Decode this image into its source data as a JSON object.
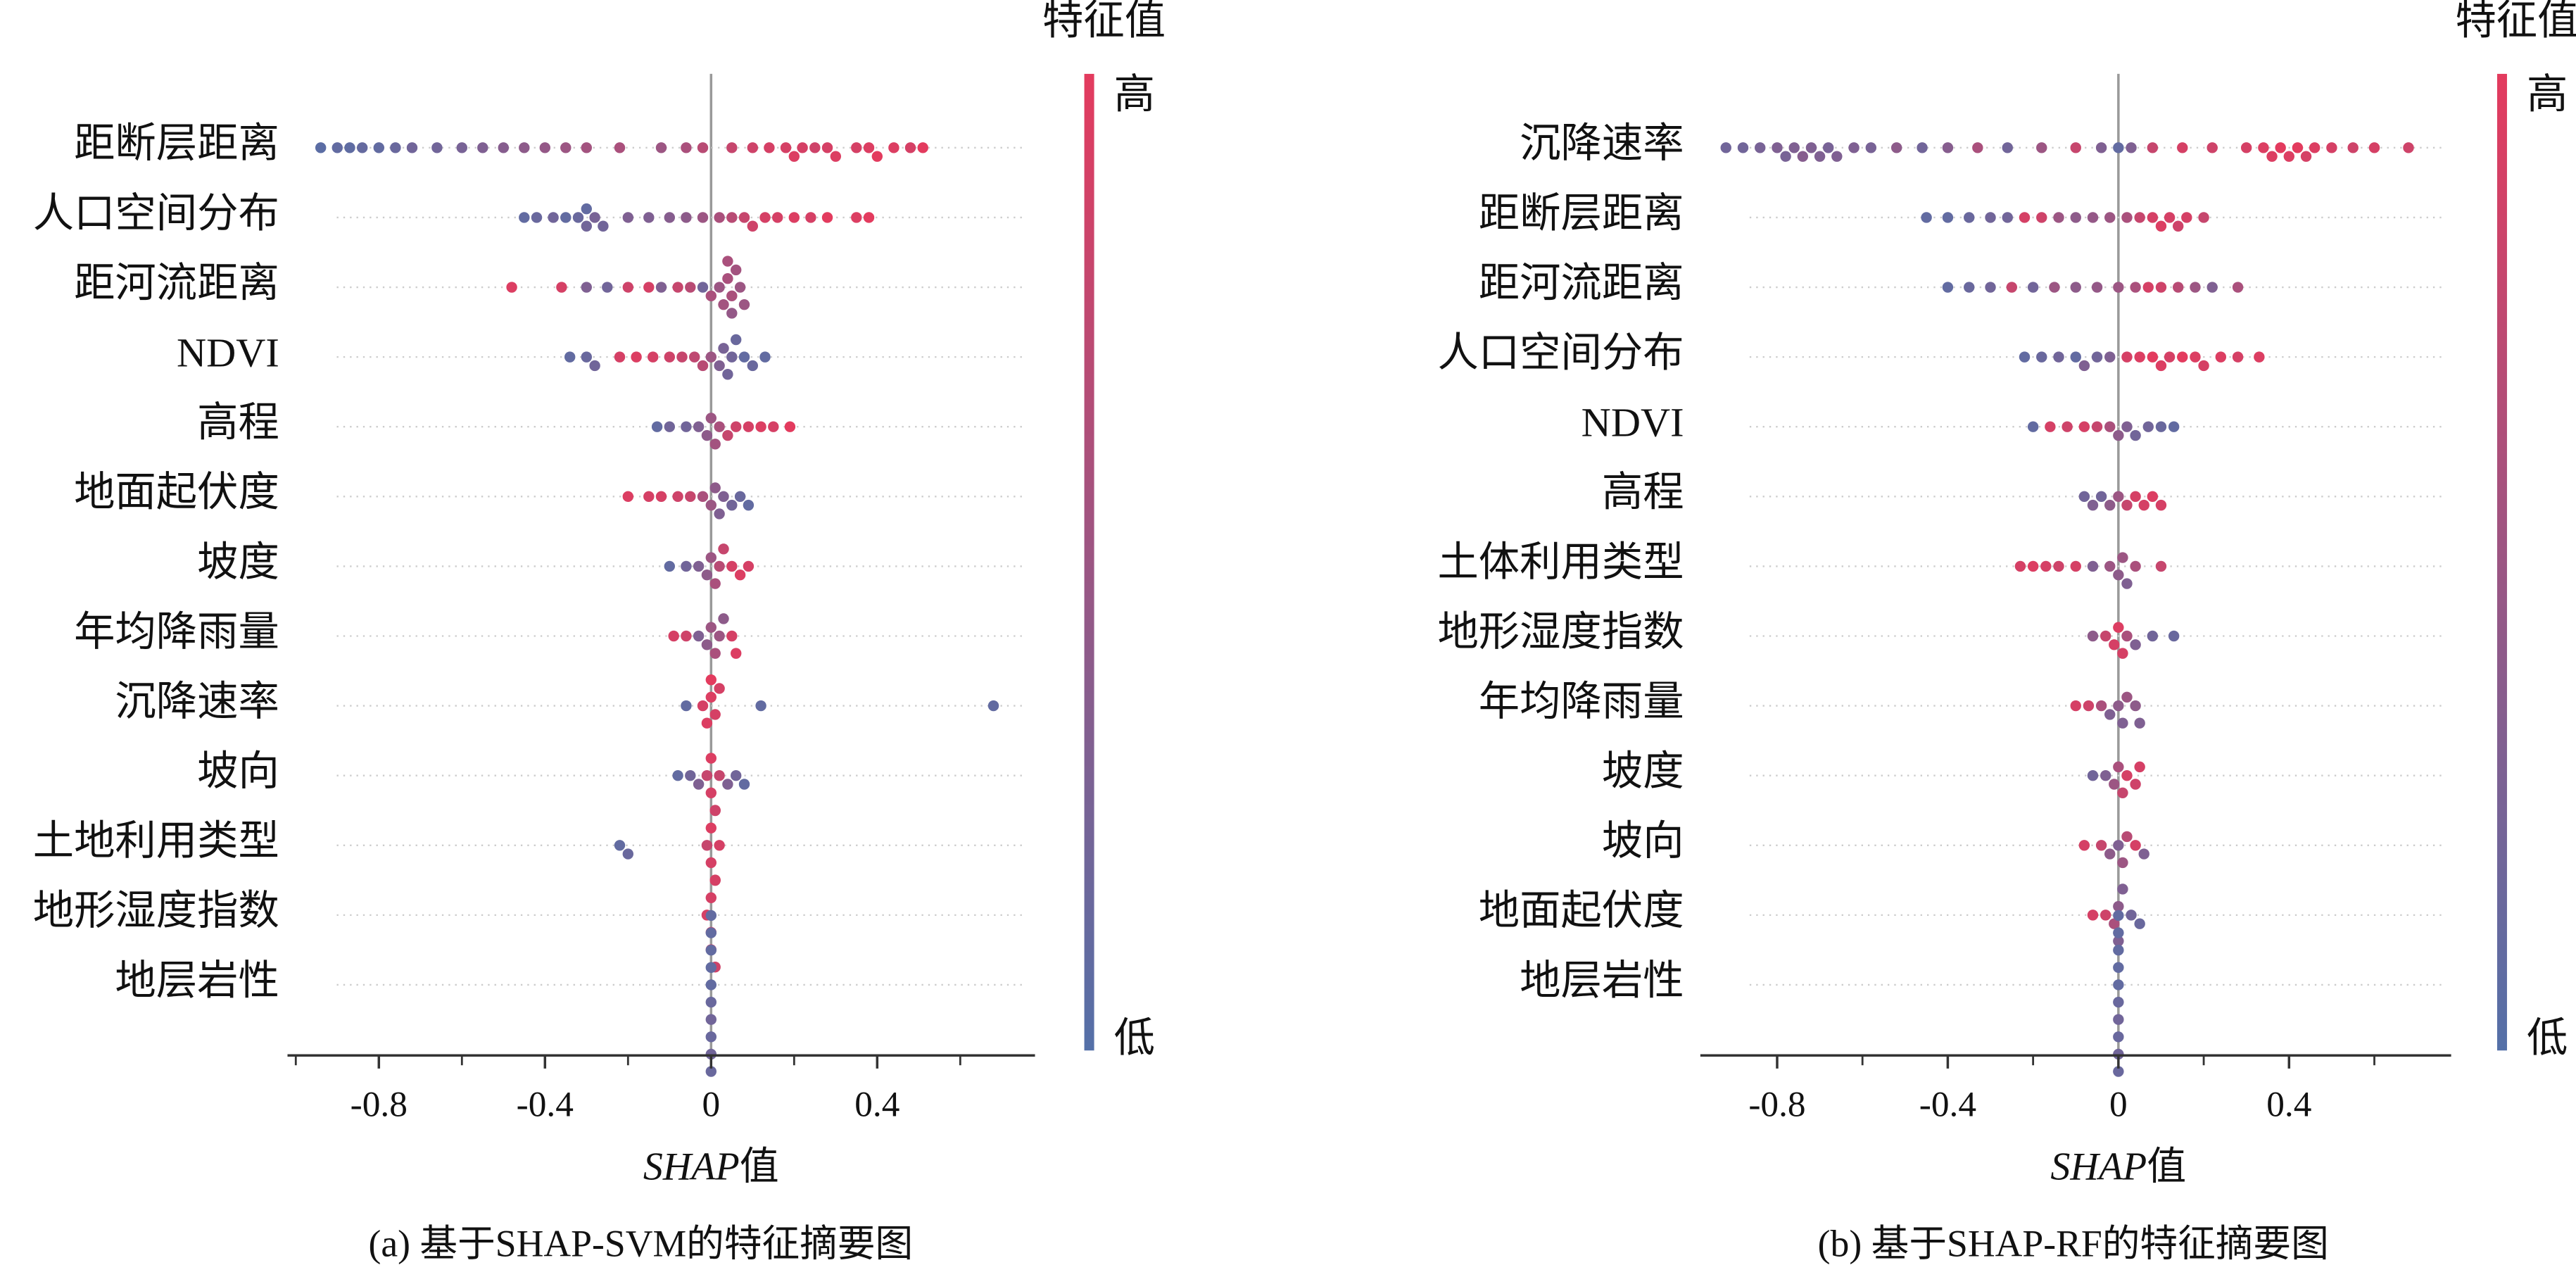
{
  "chart_data": [
    {
      "type": "beeswarm",
      "title": "(a) 基于SHAP-SVM的特征摘要图",
      "xlabel": [
        "SHAP",
        "值"
      ],
      "colorbar_label": "特征值",
      "colorbar_high": "高",
      "colorbar_low": "低",
      "colormap": [
        "#5470a8",
        "#e33b5e"
      ],
      "xlim": [
        -1.02,
        0.78
      ],
      "xticks": [
        -0.8,
        -0.4,
        0,
        0.4
      ],
      "xminorticks": [
        -1.0,
        -0.6,
        -0.2,
        0.2,
        0.6
      ],
      "features": [
        {
          "name": "距断层距离",
          "shap": [
            -0.94,
            -0.9,
            -0.87,
            -0.84,
            -0.8,
            -0.76,
            -0.72,
            -0.66,
            -0.6,
            -0.55,
            -0.5,
            -0.45,
            -0.4,
            -0.35,
            -0.3,
            -0.22,
            -0.12,
            -0.06,
            -0.02,
            0.05,
            0.1,
            0.14,
            0.18,
            0.2,
            0.22,
            0.25,
            0.28,
            0.3,
            0.35,
            0.38,
            0.4,
            0.44,
            0.48,
            0.51
          ],
          "feature_values": [
            0.05,
            0.1,
            0.08,
            0.12,
            0.1,
            0.15,
            0.2,
            0.2,
            0.25,
            0.3,
            0.35,
            0.4,
            0.45,
            0.5,
            0.55,
            0.6,
            0.5,
            0.6,
            0.7,
            0.8,
            0.85,
            0.9,
            0.9,
            0.95,
            0.9,
            0.85,
            0.9,
            0.95,
            0.9,
            0.95,
            1,
            0.95,
            0.9,
            1
          ]
        },
        {
          "name": "人口空间分布",
          "shap": [
            -0.45,
            -0.42,
            -0.38,
            -0.35,
            -0.32,
            -0.3,
            -0.3,
            -0.28,
            -0.26,
            -0.2,
            -0.15,
            -0.1,
            -0.06,
            -0.02,
            0.02,
            0.05,
            0.08,
            0.1,
            0.13,
            0.16,
            0.2,
            0.24,
            0.28,
            0.35,
            0.38
          ],
          "feature_values": [
            0.1,
            0.15,
            0.2,
            0.1,
            0.15,
            0.2,
            0.1,
            0.25,
            0.2,
            0.3,
            0.3,
            0.35,
            0.4,
            0.5,
            0.6,
            0.7,
            0.8,
            0.85,
            0.9,
            0.9,
            0.95,
            0.9,
            1,
            0.95,
            1
          ]
        },
        {
          "name": "距河流距离",
          "shap": [
            -0.48,
            -0.36,
            -0.3,
            -0.25,
            -0.2,
            -0.15,
            -0.12,
            -0.08,
            -0.05,
            -0.02,
            0,
            0.02,
            0.03,
            0.04,
            0.05,
            0.06,
            0.07,
            0.08,
            0.05,
            0.04
          ],
          "feature_values": [
            0.95,
            0.9,
            0.3,
            0.2,
            0.85,
            0.9,
            0.3,
            0.8,
            0.7,
            0.2,
            0.6,
            0.5,
            0.55,
            0.6,
            0.6,
            0.55,
            0.5,
            0.5,
            0.45,
            0.6
          ]
        },
        {
          "name": "NDVI",
          "shap": [
            -0.34,
            -0.3,
            -0.28,
            -0.22,
            -0.18,
            -0.14,
            -0.1,
            -0.07,
            -0.04,
            -0.02,
            0,
            0.02,
            0.03,
            0.04,
            0.05,
            0.06,
            0.08,
            0.1,
            0.13
          ],
          "feature_values": [
            0.1,
            0.15,
            0.2,
            0.9,
            0.95,
            0.9,
            0.85,
            0.8,
            0.75,
            0.7,
            0.5,
            0.3,
            0.25,
            0.2,
            0.2,
            0.15,
            0.1,
            0.15,
            0.1
          ]
        },
        {
          "name": "高程",
          "shap": [
            -0.13,
            -0.1,
            -0.06,
            -0.03,
            -0.01,
            0,
            0.01,
            0.02,
            0.04,
            0.06,
            0.09,
            0.12,
            0.15,
            0.19
          ],
          "feature_values": [
            0.1,
            0.2,
            0.2,
            0.3,
            0.4,
            0.5,
            0.55,
            0.6,
            0.8,
            0.85,
            0.9,
            0.95,
            0.9,
            1
          ]
        },
        {
          "name": "地面起伏度",
          "shap": [
            -0.2,
            -0.15,
            -0.12,
            -0.08,
            -0.05,
            -0.02,
            0,
            0.01,
            0.02,
            0.03,
            0.05,
            0.07,
            0.09
          ],
          "feature_values": [
            0.95,
            0.9,
            0.9,
            0.85,
            0.8,
            0.6,
            0.5,
            0.4,
            0.3,
            0.3,
            0.2,
            0.15,
            0.1
          ]
        },
        {
          "name": "坡度",
          "shap": [
            -0.1,
            -0.06,
            -0.03,
            -0.01,
            0,
            0.01,
            0.02,
            0.03,
            0.05,
            0.07,
            0.09
          ],
          "feature_values": [
            0.1,
            0.2,
            0.3,
            0.4,
            0.5,
            0.6,
            0.7,
            0.8,
            0.9,
            0.95,
            0.9
          ]
        },
        {
          "name": "年均降雨量",
          "shap": [
            -0.09,
            -0.06,
            -0.03,
            -0.01,
            0,
            0.01,
            0.02,
            0.03,
            0.05,
            0.06
          ],
          "feature_values": [
            0.9,
            0.85,
            0.3,
            0.4,
            0.5,
            0.6,
            0.5,
            0.4,
            0.9,
            0.95
          ]
        },
        {
          "name": "沉降速率",
          "shap": [
            -0.06,
            -0.02,
            -0.01,
            0,
            0,
            0.01,
            0.02,
            0.12,
            0.68
          ],
          "feature_values": [
            0.1,
            0.9,
            0.95,
            0.95,
            1,
            0.9,
            0.9,
            0.1,
            0.1
          ]
        },
        {
          "name": "坡向",
          "shap": [
            -0.08,
            -0.05,
            -0.03,
            -0.01,
            0,
            0,
            0.01,
            0.02,
            0.04,
            0.06,
            0.08
          ],
          "feature_values": [
            0.1,
            0.2,
            0.3,
            0.8,
            0.9,
            0.95,
            0.9,
            0.8,
            0.3,
            0.2,
            0.1
          ]
        },
        {
          "name": "土地利用类型",
          "shap": [
            -0.22,
            -0.2,
            -0.01,
            0,
            0,
            0.01,
            0.01,
            0.02
          ],
          "feature_values": [
            0.1,
            0.15,
            0.8,
            0.9,
            0.95,
            0.9,
            0.85,
            0.9
          ]
        },
        {
          "name": "地形湿度指数",
          "shap": [
            -0.01,
            0,
            0,
            0,
            0.01,
            0.01
          ],
          "feature_values": [
            0.9,
            0.95,
            0.9,
            0.8,
            0.9,
            0.85
          ]
        },
        {
          "name": "地层岩性",
          "shap": [
            0,
            0,
            0,
            0,
            0,
            0,
            0,
            0,
            0,
            0
          ],
          "feature_values": [
            0.1,
            0.15,
            0.1,
            0.2,
            0.1,
            0.15,
            0.1,
            0.2,
            0.1,
            0.15
          ]
        }
      ]
    },
    {
      "type": "beeswarm",
      "title": "(b) 基于SHAP-RF的特征摘要图",
      "xlabel": [
        "SHAP",
        "值"
      ],
      "colorbar_label": "特征值",
      "colorbar_high": "高",
      "colorbar_low": "低",
      "colormap": [
        "#5470a8",
        "#e33b5e"
      ],
      "xlim": [
        -0.98,
        0.78
      ],
      "xticks": [
        -0.8,
        -0.4,
        0,
        0.4
      ],
      "xminorticks": [
        -0.6,
        -0.2,
        0.2,
        0.6
      ],
      "features": [
        {
          "name": "沉降速率",
          "shap": [
            -0.92,
            -0.88,
            -0.84,
            -0.8,
            -0.78,
            -0.76,
            -0.74,
            -0.72,
            -0.7,
            -0.68,
            -0.66,
            -0.62,
            -0.58,
            -0.52,
            -0.46,
            -0.4,
            -0.33,
            -0.26,
            -0.18,
            -0.1,
            -0.04,
            0,
            0.03,
            0.08,
            0.15,
            0.22,
            0.3,
            0.34,
            0.36,
            0.38,
            0.4,
            0.42,
            0.44,
            0.46,
            0.5,
            0.55,
            0.6,
            0.68
          ],
          "feature_values": [
            0.2,
            0.2,
            0.25,
            0.3,
            0.25,
            0.3,
            0.35,
            0.3,
            0.3,
            0.25,
            0.3,
            0.3,
            0.25,
            0.4,
            0.2,
            0.35,
            0.6,
            0.2,
            0.5,
            0.8,
            0.3,
            0.1,
            0.3,
            0.8,
            0.9,
            0.85,
            0.9,
            0.95,
            0.95,
            1,
            0.95,
            1,
            0.9,
            0.95,
            0.9,
            0.85,
            0.9,
            0.85
          ]
        },
        {
          "name": "距断层距离",
          "shap": [
            -0.45,
            -0.4,
            -0.35,
            -0.3,
            -0.26,
            -0.22,
            -0.18,
            -0.14,
            -0.1,
            -0.06,
            -0.02,
            0.02,
            0.05,
            0.08,
            0.1,
            0.12,
            0.14,
            0.16,
            0.2
          ],
          "feature_values": [
            0.1,
            0.1,
            0.15,
            0.2,
            0.2,
            0.9,
            0.85,
            0.5,
            0.4,
            0.45,
            0.5,
            0.6,
            0.8,
            0.9,
            0.95,
            0.9,
            0.85,
            0.9,
            0.8
          ]
        },
        {
          "name": "距河流距离",
          "shap": [
            -0.4,
            -0.35,
            -0.3,
            -0.25,
            -0.2,
            -0.15,
            -0.1,
            -0.05,
            0,
            0.04,
            0.07,
            0.1,
            0.14,
            0.18,
            0.22,
            0.28
          ],
          "feature_values": [
            0.1,
            0.15,
            0.2,
            0.8,
            0.2,
            0.5,
            0.4,
            0.45,
            0.5,
            0.6,
            0.9,
            0.85,
            0.7,
            0.5,
            0.3,
            0.6
          ]
        },
        {
          "name": "人口空间分布",
          "shap": [
            -0.22,
            -0.18,
            -0.14,
            -0.1,
            -0.08,
            -0.05,
            -0.02,
            0.02,
            0.05,
            0.08,
            0.1,
            0.12,
            0.15,
            0.18,
            0.2,
            0.24,
            0.28,
            0.33
          ],
          "feature_values": [
            0.1,
            0.15,
            0.2,
            0.1,
            0.3,
            0.2,
            0.3,
            0.9,
            0.95,
            1,
            0.95,
            0.9,
            1,
            0.95,
            0.9,
            0.95,
            0.9,
            0.95
          ]
        },
        {
          "name": "NDVI",
          "shap": [
            -0.2,
            -0.16,
            -0.12,
            -0.08,
            -0.05,
            -0.02,
            0,
            0.02,
            0.04,
            0.07,
            0.1,
            0.13
          ],
          "feature_values": [
            0.1,
            0.9,
            0.85,
            0.9,
            0.8,
            0.6,
            0.4,
            0.3,
            0.2,
            0.2,
            0.15,
            0.1
          ]
        },
        {
          "name": "高程",
          "shap": [
            -0.08,
            -0.06,
            -0.04,
            -0.02,
            0,
            0.02,
            0.04,
            0.06,
            0.08,
            0.1
          ],
          "feature_values": [
            0.2,
            0.3,
            0.2,
            0.4,
            0.5,
            0.8,
            0.9,
            0.9,
            0.95,
            0.9
          ]
        },
        {
          "name": "土体利用类型",
          "shap": [
            -0.23,
            -0.2,
            -0.17,
            -0.14,
            -0.1,
            -0.06,
            -0.02,
            0,
            0.01,
            0.02,
            0.04,
            0.1
          ],
          "feature_values": [
            0.9,
            0.95,
            0.9,
            0.85,
            0.9,
            0.3,
            0.5,
            0.4,
            0.5,
            0.3,
            0.6,
            0.8
          ]
        },
        {
          "name": "地形湿度指数",
          "shap": [
            -0.06,
            -0.03,
            -0.01,
            0,
            0.01,
            0.02,
            0.04,
            0.08,
            0.13
          ],
          "feature_values": [
            0.4,
            0.8,
            0.9,
            0.95,
            0.9,
            0.6,
            0.3,
            0.2,
            0.15
          ]
        },
        {
          "name": "年均降雨量",
          "shap": [
            -0.1,
            -0.07,
            -0.04,
            -0.02,
            0,
            0.01,
            0.02,
            0.04,
            0.05
          ],
          "feature_values": [
            0.9,
            0.85,
            0.6,
            0.3,
            0.4,
            0.3,
            0.5,
            0.4,
            0.3
          ]
        },
        {
          "name": "坡度",
          "shap": [
            -0.06,
            -0.03,
            -0.01,
            0,
            0.01,
            0.02,
            0.04,
            0.05
          ],
          "feature_values": [
            0.2,
            0.3,
            0.5,
            0.6,
            0.8,
            0.9,
            0.85,
            0.9
          ]
        },
        {
          "name": "坡向",
          "shap": [
            -0.08,
            -0.04,
            -0.02,
            0,
            0.01,
            0.02,
            0.04,
            0.06
          ],
          "feature_values": [
            0.9,
            0.8,
            0.4,
            0.3,
            0.5,
            0.7,
            0.9,
            0.3
          ]
        },
        {
          "name": "地面起伏度",
          "shap": [
            -0.06,
            -0.03,
            -0.01,
            0,
            0,
            0.01,
            0.03,
            0.05
          ],
          "feature_values": [
            0.9,
            0.85,
            0.6,
            0.4,
            0.3,
            0.3,
            0.2,
            0.15
          ]
        },
        {
          "name": "地层岩性",
          "shap": [
            0,
            0,
            0,
            0,
            0,
            0,
            0,
            0,
            0,
            0
          ],
          "feature_values": [
            0.1,
            0.15,
            0.1,
            0.2,
            0.1,
            0.15,
            0.1,
            0.2,
            0.1,
            0.15
          ]
        }
      ]
    }
  ]
}
